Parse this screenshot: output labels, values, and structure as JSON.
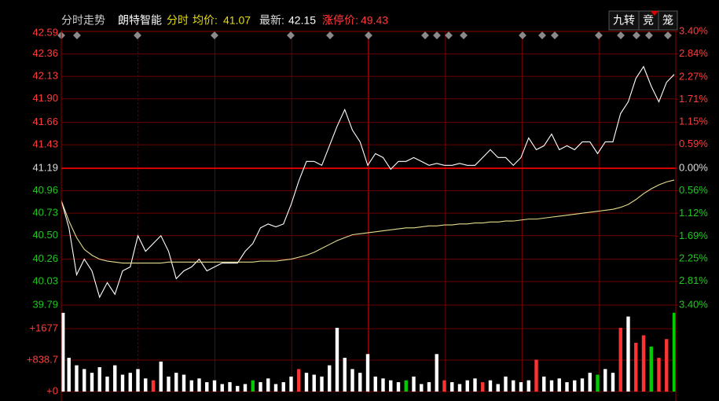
{
  "header": {
    "title": "分时走势",
    "stock": "朗特智能",
    "mode": "分时",
    "avg_label": "均价:",
    "avg_value": "41.07",
    "latest_label": "最新:",
    "latest_value": "42.15",
    "limit_label": "涨停价:",
    "limit_value": "49.43",
    "buttons": [
      "九转",
      "竞",
      "笼"
    ]
  },
  "chart_data": [
    {
      "type": "line",
      "ylim": [
        39.79,
        42.59
      ],
      "yticks": [
        42.59,
        42.36,
        42.13,
        {
          "value": 41.9,
          "label": "41.90"
        },
        41.66,
        41.43,
        41.19,
        40.96,
        40.73,
        {
          "value": 40.5,
          "label": "40.50"
        },
        40.26,
        40.03,
        39.79
      ],
      "y2lim": [
        -3.4,
        3.4
      ],
      "y2ticks": [
        {
          "value": 3.4,
          "label": "3.40%"
        },
        {
          "value": 2.84,
          "label": "2.84%"
        },
        {
          "value": 2.27,
          "label": "2.27%"
        },
        {
          "value": 1.71,
          "label": "1.71%"
        },
        {
          "value": 1.15,
          "label": "1.15%"
        },
        {
          "value": 0.59,
          "label": "0.59%"
        },
        {
          "value": 0,
          "label": "0.00%"
        },
        {
          "value": -0.56,
          "label": "0.56%"
        },
        {
          "value": -1.12,
          "label": "1.12%"
        },
        {
          "value": -1.69,
          "label": "1.69%"
        },
        {
          "value": -2.25,
          "label": "2.25%"
        },
        {
          "value": -2.81,
          "label": "2.81%"
        },
        {
          "value": -3.4,
          "label": "3.40%"
        }
      ],
      "grid": true,
      "series": [
        {
          "color": "#ffffff",
          "values": [
            40.86,
            40.58,
            40.1,
            40.26,
            40.14,
            39.87,
            40.02,
            39.9,
            40.14,
            40.18,
            40.5,
            40.34,
            40.42,
            40.5,
            40.34,
            40.06,
            40.14,
            40.18,
            40.26,
            40.14,
            40.18,
            40.22,
            40.22,
            40.22,
            40.34,
            40.42,
            40.58,
            40.62,
            40.59,
            40.62,
            40.82,
            41.06,
            41.26,
            41.26,
            41.22,
            41.42,
            41.62,
            41.79,
            41.58,
            41.46,
            41.22,
            41.34,
            41.3,
            41.18,
            41.26,
            41.26,
            41.3,
            41.26,
            41.22,
            41.24,
            41.22,
            41.22,
            41.24,
            41.22,
            41.22,
            41.3,
            41.38,
            41.3,
            41.3,
            41.22,
            41.3,
            41.5,
            41.38,
            41.42,
            41.54,
            41.38,
            41.42,
            41.38,
            41.46,
            41.46,
            41.34,
            41.46,
            41.46,
            41.75,
            41.87,
            42.11,
            42.23,
            42.03,
            41.87,
            42.07,
            42.15
          ]
        },
        {
          "color": "#e6dc8c",
          "values": [
            40.86,
            40.65,
            40.48,
            40.36,
            40.3,
            40.26,
            40.24,
            40.23,
            40.22,
            40.22,
            40.22,
            40.22,
            40.22,
            40.22,
            40.23,
            40.23,
            40.23,
            40.23,
            40.23,
            40.23,
            40.23,
            40.23,
            40.23,
            40.23,
            40.23,
            40.23,
            40.24,
            40.24,
            40.24,
            40.25,
            40.26,
            40.28,
            40.3,
            40.33,
            40.37,
            40.41,
            40.45,
            40.48,
            40.51,
            40.52,
            40.53,
            40.54,
            40.55,
            40.56,
            40.57,
            40.58,
            40.58,
            40.59,
            40.6,
            40.6,
            40.61,
            40.61,
            40.62,
            40.62,
            40.63,
            40.63,
            40.64,
            40.64,
            40.65,
            40.65,
            40.66,
            40.67,
            40.67,
            40.68,
            40.69,
            40.7,
            40.71,
            40.72,
            40.73,
            40.74,
            40.75,
            40.76,
            40.77,
            40.79,
            40.82,
            40.87,
            40.93,
            40.98,
            41.02,
            41.05,
            41.07
          ]
        }
      ]
    },
    {
      "type": "bar",
      "ylim": [
        0,
        2306
      ],
      "yticks": [
        {
          "value": 1677,
          "label": "+1677"
        },
        {
          "value": 838.7,
          "label": "+838.7"
        },
        {
          "value": 0,
          "label": "+0"
        }
      ],
      "grid": true,
      "values": [
        2100,
        900,
        700,
        600,
        500,
        650,
        400,
        700,
        450,
        500,
        600,
        350,
        300,
        800,
        400,
        500,
        450,
        300,
        350,
        250,
        300,
        200,
        250,
        150,
        200,
        300,
        250,
        350,
        200,
        250,
        400,
        600,
        500,
        450,
        400,
        700,
        1700,
        900,
        600,
        500,
        1000,
        400,
        350,
        300,
        250,
        300,
        400,
        200,
        250,
        1000,
        300,
        250,
        200,
        300,
        350,
        250,
        300,
        200,
        400,
        300,
        250,
        300,
        850,
        400,
        300,
        350,
        250,
        300,
        350,
        500,
        450,
        600,
        500,
        1700,
        2000,
        1300,
        1500,
        1200,
        900,
        1400,
        2100
      ],
      "bar_colors": [
        "#fff",
        "#fff",
        "#fff",
        "#fff",
        "#fff",
        "#fff",
        "#fff",
        "#fff",
        "#fff",
        "#fff",
        "#fff",
        "#fff",
        "#f33",
        "#fff",
        "#fff",
        "#fff",
        "#fff",
        "#fff",
        "#fff",
        "#fff",
        "#fff",
        "#fff",
        "#fff",
        "#fff",
        "#fff",
        "#0c0",
        "#fff",
        "#fff",
        "#fff",
        "#fff",
        "#fff",
        "#f33",
        "#fff",
        "#fff",
        "#fff",
        "#fff",
        "#fff",
        "#fff",
        "#fff",
        "#fff",
        "#fff",
        "#fff",
        "#fff",
        "#fff",
        "#fff",
        "#0c0",
        "#fff",
        "#fff",
        "#fff",
        "#fff",
        "#f33",
        "#fff",
        "#fff",
        "#fff",
        "#fff",
        "#f33",
        "#fff",
        "#fff",
        "#fff",
        "#fff",
        "#fff",
        "#fff",
        "#f33",
        "#fff",
        "#fff",
        "#fff",
        "#fff",
        "#fff",
        "#fff",
        "#fff",
        "#0c0",
        "#fff",
        "#fff",
        "#f33",
        "#fff",
        "#f33",
        "#f33",
        "#0c0",
        "#f33",
        "#f33",
        "#0c0"
      ]
    }
  ]
}
